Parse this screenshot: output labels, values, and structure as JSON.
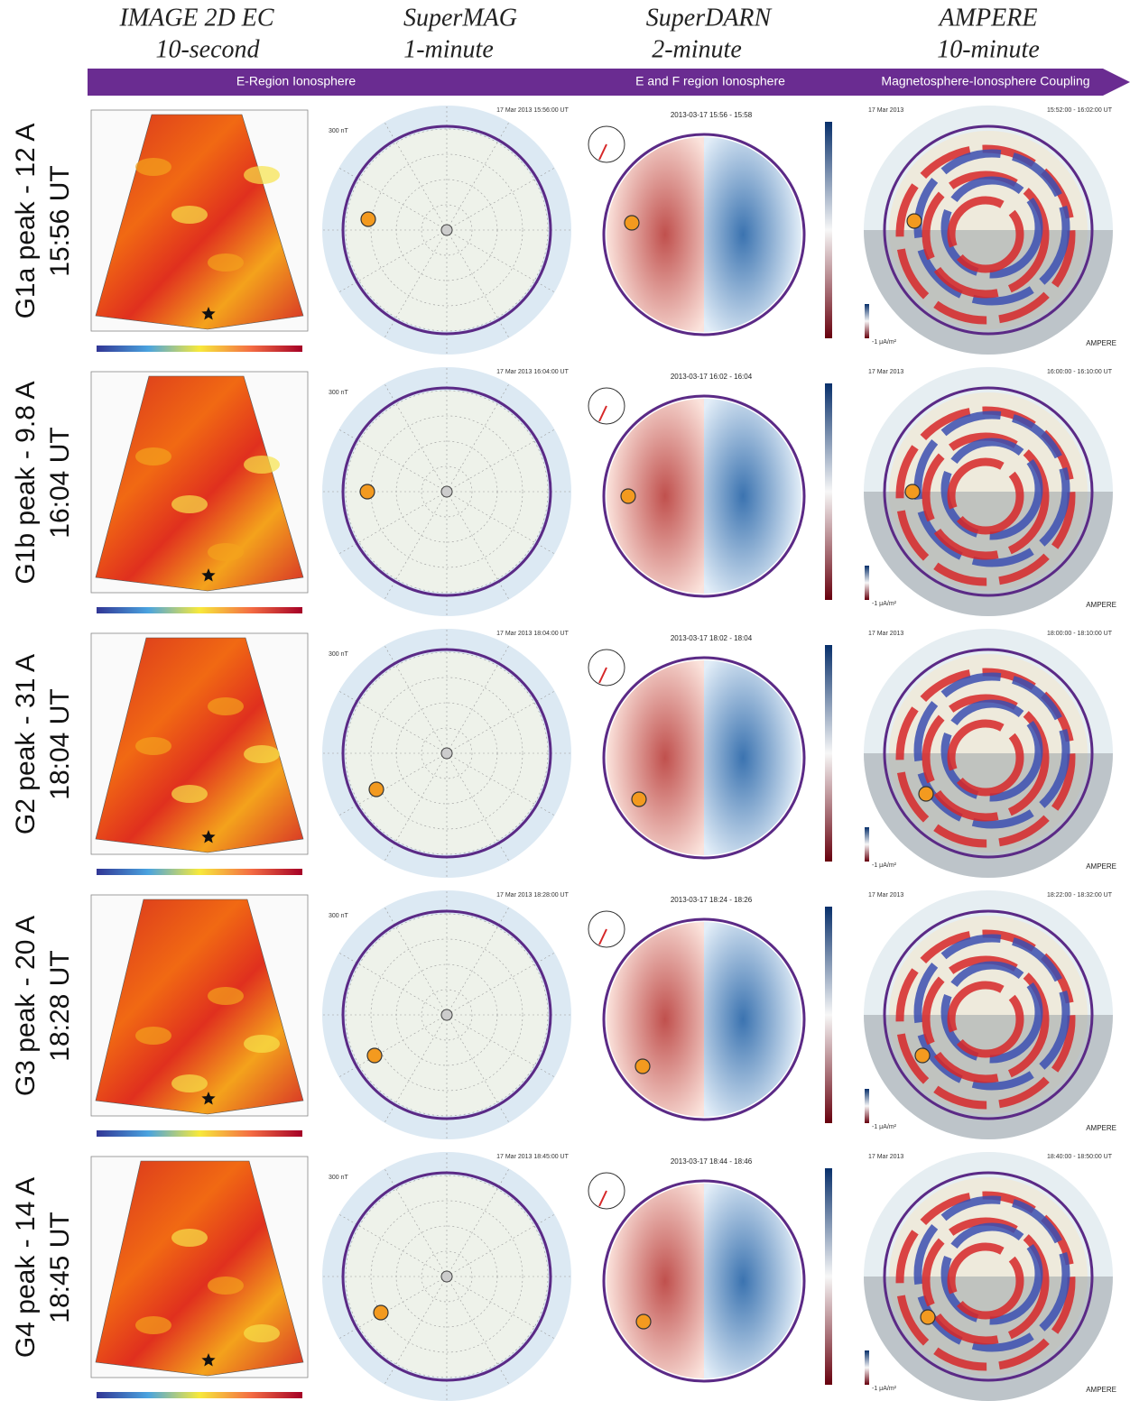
{
  "columns": [
    {
      "title": "IMAGE 2D EC",
      "cadence": "10-second"
    },
    {
      "title": "SuperMAG",
      "cadence": "1-minute"
    },
    {
      "title": "SuperDARN",
      "cadence": "2-minute"
    },
    {
      "title": "AMPERE",
      "cadence": "10-minute"
    }
  ],
  "banner": [
    "E-Region Ionosphere",
    "E and F region Ionosphere",
    "Magnetosphere-Ionosphere Coupling"
  ],
  "supermag_scale": "300 nT",
  "ampere_logo": "AMPERE",
  "ampere_scale": "-1 μA/m²",
  "rows": [
    {
      "label": "G1a peak - 12 A",
      "time": "15:56 UT",
      "supermag_date": "17 Mar 2013 15:56:00 UT",
      "superdarn_title": "2013-03-17 15:56 - 15:58",
      "ampere_date": "17 Mar 2013",
      "ampere_time": "15:52:00 - 16:02:00 UT"
    },
    {
      "label": "G1b peak - 9.8 A",
      "time": "16:04 UT",
      "supermag_date": "17 Mar 2013 16:04:00 UT",
      "superdarn_title": "2013-03-17 16:02 - 16:04",
      "ampere_date": "17 Mar 2013",
      "ampere_time": "16:00:00 - 16:10:00 UT"
    },
    {
      "label": "G2 peak - 31 A",
      "time": "18:04 UT",
      "supermag_date": "17 Mar 2013 18:04:00 UT",
      "superdarn_title": "2013-03-17 18:02 - 18:04",
      "ampere_date": "17 Mar 2013",
      "ampere_time": "18:00:00 - 18:10:00 UT"
    },
    {
      "label": "G3 peak - 20 A",
      "time": "18:28 UT",
      "supermag_date": "17 Mar 2013 18:28:00 UT",
      "superdarn_title": "2013-03-17 18:24 - 18:26",
      "ampere_date": "17 Mar 2013",
      "ampere_time": "18:22:00 - 18:32:00 UT"
    },
    {
      "label": "G4 peak - 14 A",
      "time": "18:45 UT",
      "supermag_date": "17 Mar 2013 18:45:00 UT",
      "superdarn_title": "2013-03-17 18:44 - 18:46",
      "ampere_date": "17 Mar 2013",
      "ampere_time": "18:40:00 - 18:50:00 UT"
    }
  ]
}
